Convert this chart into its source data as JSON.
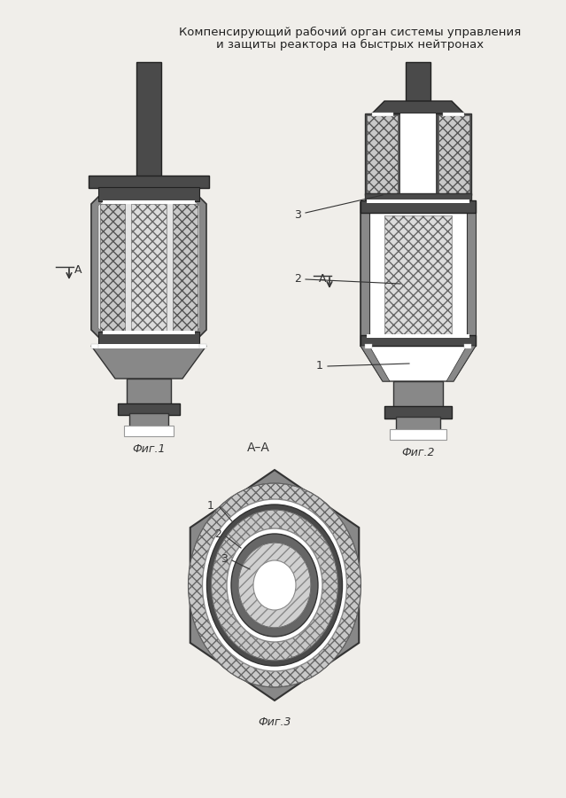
{
  "title_line1": "Компенсирующий рабочий орган системы управления",
  "title_line2": "и защиты реактора на быстрых нейтронах",
  "fig1_label": "Фиг.1",
  "fig2_label": "Фиг.2",
  "fig3_label": "Фиг.3",
  "fig3_title": "А–А",
  "bg_color": "#f0eeea",
  "dark_gray": "#4a4a4a",
  "mid_gray": "#888888",
  "light_gray": "#c0c0c0",
  "very_light_gray": "#e4e4e4",
  "white": "#ffffff",
  "label_1": "1",
  "label_2": "2",
  "label_3": "3"
}
